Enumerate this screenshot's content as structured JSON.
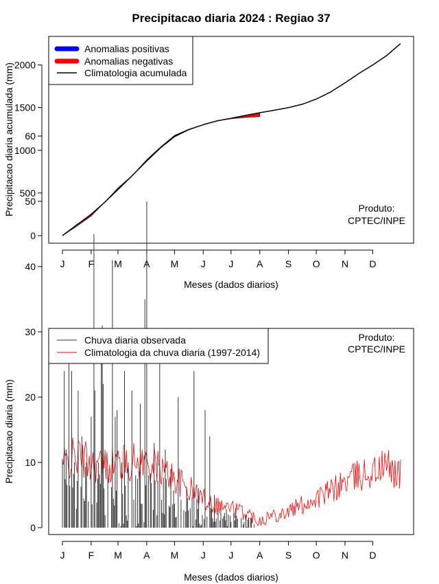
{
  "title": "Precipitacao diaria 2024 : Regiao 37",
  "colors": {
    "positive": "#0000ff",
    "negative": "#ff0000",
    "line": "#000000",
    "bars": "#333333",
    "clim": "#ff0000"
  },
  "chart_data": [
    {
      "type": "area",
      "title": "Precipitacao diaria 2024 : Regiao 37",
      "xlabel": "Meses (dados diarios)",
      "ylabel": "Precipitacao diaria acumulada (mm)",
      "x_tick_labels": [
        "J",
        "F",
        "M",
        "A",
        "M",
        "J",
        "J",
        "A",
        "S",
        "O",
        "N",
        "D"
      ],
      "x_tick_days": [
        1,
        32,
        61,
        92,
        122,
        153,
        183,
        214,
        245,
        275,
        306,
        336
      ],
      "xlim": [
        1,
        366
      ],
      "ylim": [
        0,
        2250
      ],
      "y_ticks": [
        0,
        500,
        1000,
        1500,
        2000
      ],
      "legend": [
        "Anomalias positivas",
        "Anomalias negativas",
        "Climatologia acumulada"
      ],
      "legend_position": "top-left",
      "annotation": [
        "Produto:",
        "CPTEC/INPE"
      ],
      "climatology_cumulative": {
        "day": [
          1,
          15,
          32,
          46,
          61,
          76,
          92,
          107,
          122,
          137,
          153,
          168,
          183,
          199,
          214,
          230,
          245,
          260,
          275,
          290,
          306,
          321,
          336,
          351,
          366
        ],
        "mm": [
          0,
          115,
          250,
          385,
          540,
          700,
          875,
          1030,
          1160,
          1240,
          1300,
          1345,
          1375,
          1410,
          1440,
          1470,
          1500,
          1540,
          1600,
          1680,
          1790,
          1900,
          2000,
          2110,
          2250
        ]
      },
      "observed_cumulative": {
        "day": [
          1,
          15,
          32,
          46,
          61,
          76,
          92,
          107,
          122,
          137,
          153,
          168,
          183,
          199,
          214
        ],
        "mm": [
          0,
          100,
          230,
          385,
          560,
          700,
          890,
          1040,
          1175,
          1245,
          1300,
          1345,
          1370,
          1385,
          1395
        ]
      }
    },
    {
      "type": "bar",
      "xlabel": "Meses (dados diarios)",
      "ylabel": "Precipitacao diaria (mm)",
      "x_tick_labels": [
        "J",
        "F",
        "M",
        "A",
        "M",
        "J",
        "J",
        "A",
        "S",
        "O",
        "N",
        "D"
      ],
      "x_tick_days": [
        1,
        32,
        61,
        92,
        122,
        153,
        183,
        214,
        245,
        275,
        306,
        336
      ],
      "xlim": [
        1,
        366
      ],
      "ylim": [
        0,
        60
      ],
      "y_ticks": [
        0,
        10,
        20,
        30,
        40,
        50,
        60
      ],
      "legend": [
        "Chuva diaria observada",
        "Climatologia da chuva diaria (1997-2014)"
      ],
      "legend_position": "top-left",
      "annotation": [
        "Produto:",
        "CPTEC/INPE"
      ],
      "observed_daily_peaks": {
        "day": [
          1,
          3,
          5,
          8,
          11,
          14,
          18,
          22,
          27,
          32,
          35,
          36,
          40,
          43,
          44,
          45,
          50,
          55,
          58,
          60,
          65,
          68,
          72,
          76,
          80,
          85,
          90,
          92,
          94,
          100,
          106,
          112,
          118,
          126,
          135,
          143,
          148,
          155,
          160,
          165,
          172,
          180,
          188
        ],
        "mm": [
          10.5,
          24,
          12,
          26,
          24,
          10,
          21,
          14,
          10,
          17,
          45,
          21,
          10,
          30,
          31,
          22,
          9,
          41,
          17,
          18,
          10,
          24,
          10,
          21,
          8,
          19,
          35,
          50,
          8,
          13,
          26,
          12,
          9,
          20,
          6,
          24,
          6,
          18,
          14,
          5,
          3,
          2,
          3
        ]
      },
      "climatology_daily_smoothed": {
        "day": [
          1,
          15,
          32,
          46,
          61,
          76,
          92,
          107,
          122,
          137,
          153,
          168,
          183,
          199,
          214,
          230,
          245,
          260,
          275,
          290,
          306,
          321,
          336,
          351,
          366
        ],
        "mm": [
          9.5,
          11,
          10,
          9.5,
          10,
          10,
          10,
          9,
          7.5,
          6,
          4.5,
          3.5,
          3,
          2.2,
          1.2,
          2,
          2.5,
          3.5,
          4.5,
          5.5,
          7,
          8,
          8.5,
          9.5,
          8
        ]
      }
    }
  ]
}
